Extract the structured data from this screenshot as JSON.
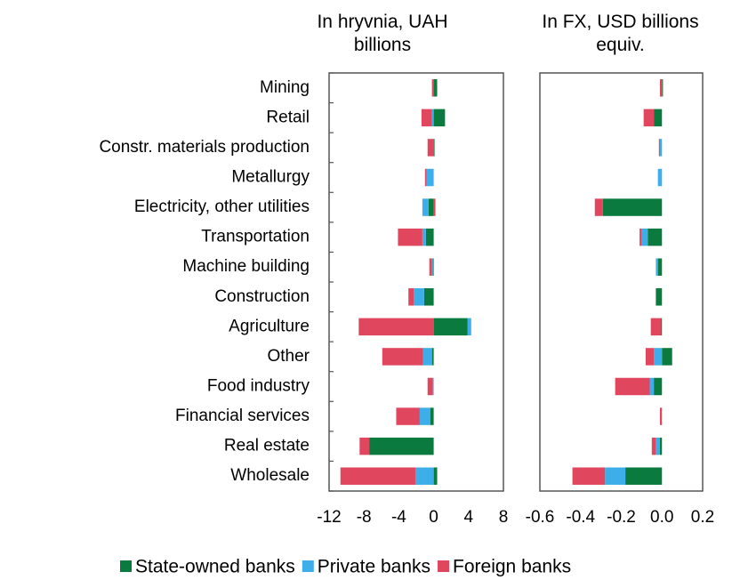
{
  "chart_data": [
    {
      "type": "bar",
      "orientation": "horizontal",
      "stacked": true,
      "title": "In hryvnia, UAH billions",
      "categories": [
        "Mining",
        "Retail",
        "Constr. materials production",
        "Metallurgy",
        "Electricity, other utilities",
        "Transportation",
        "Machine building",
        "Construction",
        "Agriculture",
        "Other",
        "Food industry",
        "Financial services",
        "Real estate",
        "Wholesale"
      ],
      "series": [
        {
          "name": "State-owned banks",
          "color": "#0a7a3e",
          "values": [
            0.4,
            1.3,
            0.1,
            0,
            -0.6,
            -0.9,
            -0.1,
            -1.1,
            3.9,
            -0.2,
            0,
            -0.4,
            -7.4,
            0.4
          ]
        },
        {
          "name": "Private banks",
          "color": "#3daee9",
          "values": [
            0,
            -0.2,
            0,
            -0.8,
            -0.7,
            -0.4,
            -0.1,
            -1.2,
            0.4,
            -1.0,
            -0.1,
            -1.2,
            0,
            -2.1
          ]
        },
        {
          "name": "Foreign banks",
          "color": "#e0475f",
          "values": [
            -0.2,
            -1.2,
            -0.7,
            -0.2,
            0.2,
            -2.8,
            -0.3,
            -0.6,
            -8.6,
            -4.7,
            -0.6,
            -2.7,
            -1.1,
            -8.6
          ]
        }
      ],
      "xlim": [
        -12,
        8
      ],
      "xticks": [
        -12,
        -8,
        -4,
        0,
        4,
        8
      ],
      "legend": "bottom"
    },
    {
      "type": "bar",
      "orientation": "horizontal",
      "stacked": true,
      "title": "In FX, USD billions equiv.",
      "series": [
        {
          "name": "State-owned banks",
          "color": "#0a7a3e",
          "values": [
            0.005,
            -0.04,
            0,
            0,
            -0.29,
            -0.07,
            -0.02,
            -0.03,
            -0.005,
            0.05,
            -0.04,
            0,
            -0.01,
            -0.18
          ]
        },
        {
          "name": "Private banks",
          "color": "#3daee9",
          "values": [
            0,
            0,
            -0.01,
            -0.02,
            0,
            -0.03,
            -0.01,
            0,
            0,
            -0.04,
            -0.02,
            0,
            -0.02,
            -0.1
          ]
        },
        {
          "name": "Foreign banks",
          "color": "#e0475f",
          "values": [
            -0.01,
            -0.05,
            -0.005,
            0,
            -0.04,
            -0.01,
            0,
            0,
            -0.05,
            -0.04,
            -0.17,
            -0.01,
            -0.02,
            -0.16
          ]
        }
      ],
      "xlim": [
        -0.6,
        0.2
      ],
      "xticks": [
        -0.6,
        -0.4,
        -0.2,
        {
          "value": 0,
          "label": "0.0"
        },
        0.2
      ]
    }
  ]
}
